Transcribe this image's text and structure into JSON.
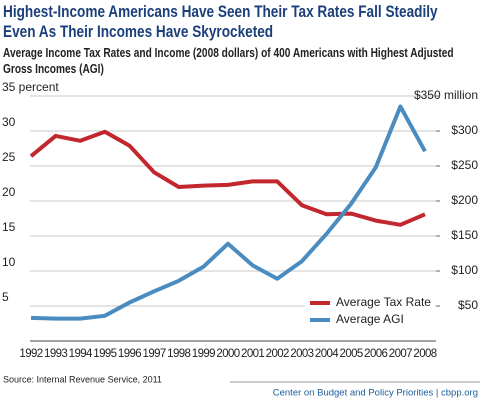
{
  "chart_data": {
    "type": "line",
    "title": "Highest-Income Americans Have Seen Their Tax Rates Fall Steadily Even As Their Incomes Have Skyrocketed",
    "subtitle": "Average Income Tax Rates and Income (2008 dollars) of 400 Americans with Highest Adjusted Gross Incomes (AGI)",
    "categories": [
      "1992",
      "1993",
      "1994",
      "1995",
      "1996",
      "1997",
      "1998",
      "1999",
      "2000",
      "2001",
      "2002",
      "2003",
      "2004",
      "2005",
      "2006",
      "2007",
      "2008"
    ],
    "series": [
      {
        "name": "Average Tax Rate",
        "color": "#c1272d",
        "values": [
          26.4,
          29.3,
          28.6,
          29.9,
          27.9,
          24.1,
          22.0,
          22.2,
          22.3,
          22.8,
          22.8,
          19.4,
          18.1,
          18.2,
          17.2,
          16.6,
          18.1
        ]
      },
      {
        "name": "Average AGI",
        "color": "#4a8cc0",
        "axis": "y2",
        "values": [
          33,
          32,
          32,
          36,
          55,
          71,
          86,
          106,
          139,
          108,
          89,
          114,
          153,
          196,
          248,
          335,
          271
        ]
      }
    ],
    "ylim": [
      0,
      35
    ],
    "yticks": [
      5,
      10,
      15,
      20,
      25,
      {
        "value": 30,
        "label": "30"
      },
      {
        "value": 35,
        "label": "35 percent"
      }
    ],
    "y2lim": [
      0,
      350
    ],
    "y2ticks": [
      {
        "value": 50,
        "label": "$50"
      },
      {
        "value": 100,
        "label": "$100"
      },
      {
        "value": 150,
        "label": "$150"
      },
      {
        "value": 200,
        "label": "$200"
      },
      {
        "value": 250,
        "label": "$250"
      },
      {
        "value": 300,
        "label": "$300"
      },
      {
        "value": 350,
        "label": "$350 million"
      }
    ],
    "grid": true,
    "legend": "lower right",
    "source": "Source: Internal Revenue Service, 2011",
    "footer": "Center on Budget and Policy Priorities | cbpp.org"
  }
}
